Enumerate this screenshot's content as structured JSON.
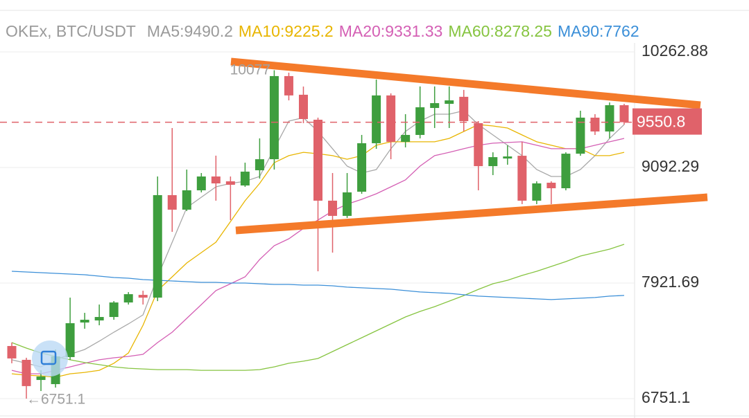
{
  "chart_data": {
    "type": "candlestick",
    "title": "OKEx, BTC/USDT",
    "up_color": "#3e9e3e",
    "down_color": "#e0626a",
    "ylim": [
      6751.1,
      10262.88
    ],
    "yticks": [
      10262.88,
      9092.29,
      7921.69,
      6751.1
    ],
    "grid": true,
    "last_price": 9550.8,
    "annotations": [
      "10077",
      "←6751.1"
    ],
    "open": [
      7284,
      7144,
      6940,
      6898,
      7172,
      7522,
      7543,
      7578,
      7725,
      7802,
      7774,
      8812,
      8665,
      8861,
      9001,
      8952,
      8910,
      9064,
      9176,
      10018,
      9829,
      9576,
      8756,
      8602,
      8847,
      9338,
      9822,
      9352,
      9422,
      9695,
      9737,
      9808,
      9541,
      9106,
      9183,
      9211,
      8756,
      8938,
      8882,
      9232,
      9597,
      9457,
      9723
    ],
    "high": [
      7319,
      7165,
      7039,
      7249,
      7774,
      7620,
      7704,
      7739,
      7830,
      7844,
      9001,
      9492,
      9071,
      9036,
      9212,
      9001,
      9141,
      9387,
      10077,
      10053,
      9912,
      9597,
      9036,
      9036,
      9422,
      9983,
      9843,
      9632,
      9913,
      9913,
      9913,
      9878,
      9562,
      9246,
      9316,
      9352,
      8952,
      8952,
      9246,
      9667,
      9632,
      9751,
      9737
    ],
    "low": [
      7109,
      6751.1,
      6828,
      6863,
      7144,
      7459,
      7494,
      7550,
      7704,
      7704,
      7739,
      8440,
      8651,
      8840,
      8756,
      8559,
      8896,
      8980,
      9071,
      9772,
      9541,
      8041,
      8230,
      8581,
      8826,
      9281,
      9176,
      9296,
      9387,
      9492,
      9492,
      9457,
      8861,
      9015,
      9120,
      8721,
      8721,
      8721,
      8861,
      9211,
      9422,
      9387,
      9527
    ],
    "close": [
      7158,
      6878,
      6975,
      7179,
      7515,
      7550,
      7578,
      7725,
      7809,
      7774,
      8812,
      8665,
      8861,
      9001,
      8931,
      8917,
      9050,
      9176,
      10018,
      9822,
      9583,
      8756,
      8602,
      8840,
      9338,
      9822,
      9352,
      9422,
      9702,
      9744,
      9772,
      9562,
      9106,
      9197,
      9204,
      8756,
      8931,
      8882,
      9232,
      9597,
      9457,
      9723,
      9550.8
    ],
    "series": [
      {
        "name": "MA5:9490.2",
        "color": "#a8a8a8",
        "values": [
          7144,
          7109,
          7073,
          7144,
          7200,
          7249,
          7333,
          7424,
          7508,
          7599,
          7985,
          8335,
          8686,
          8791,
          8896,
          8931,
          8952,
          9001,
          9282,
          9562,
          9597,
          9457,
          9282,
          9106,
          9036,
          9071,
          9282,
          9457,
          9562,
          9632,
          9632,
          9667,
          9527,
          9422,
          9317,
          9212,
          9071,
          9001,
          9001,
          9071,
          9212,
          9387,
          9527
        ]
      },
      {
        "name": "MA10:9225.2",
        "color": "#e8b500",
        "values": [
          7003,
          6989,
          6982,
          6968,
          7003,
          7017,
          7038,
          7109,
          7214,
          7494,
          7845,
          7985,
          8125,
          8230,
          8335,
          8545,
          8756,
          8931,
          9141,
          9212,
          9246,
          9232,
          9212,
          9176,
          9212,
          9317,
          9352,
          9352,
          9352,
          9352,
          9387,
          9457,
          9527,
          9513,
          9492,
          9422,
          9352,
          9317,
          9282,
          9282,
          9212,
          9212,
          9246
        ]
      },
      {
        "name": "MA20:9331.33",
        "color": "#d45fb4",
        "values": [
          7038,
          7003,
          7003,
          7038,
          7073,
          7109,
          7144,
          7165,
          7179,
          7200,
          7319,
          7424,
          7564,
          7704,
          7845,
          7915,
          7985,
          8160,
          8300,
          8370,
          8475,
          8560,
          8651,
          8721,
          8770,
          8826,
          8896,
          8966,
          9106,
          9212,
          9246,
          9282,
          9317,
          9338,
          9345,
          9352,
          9317,
          9282,
          9282,
          9282,
          9317,
          9352,
          9387
        ]
      },
      {
        "name": "MA60:8278.25",
        "color": "#86c440",
        "values": [
          7319,
          7263,
          7214,
          7179,
          7144,
          7116,
          7095,
          7073,
          7059,
          7052,
          7045,
          7045,
          7045,
          7038,
          7038,
          7038,
          7038,
          7045,
          7073,
          7109,
          7130,
          7158,
          7228,
          7298,
          7368,
          7438,
          7508,
          7578,
          7634,
          7683,
          7739,
          7795,
          7858,
          7915,
          7950,
          7999,
          8041,
          8090,
          8139,
          8195,
          8230,
          8265,
          8314
        ]
      },
      {
        "name": "MA90:7762",
        "color": "#3b8fd8",
        "values": [
          8041,
          8034,
          8027,
          8020,
          8013,
          8006,
          7992,
          7978,
          7971,
          7957,
          7950,
          7943,
          7936,
          7929,
          7929,
          7922,
          7922,
          7915,
          7908,
          7908,
          7901,
          7901,
          7894,
          7880,
          7873,
          7866,
          7859,
          7845,
          7831,
          7824,
          7817,
          7803,
          7789,
          7782,
          7775,
          7768,
          7761,
          7754,
          7761,
          7768,
          7775,
          7789,
          7796
        ]
      }
    ]
  }
}
